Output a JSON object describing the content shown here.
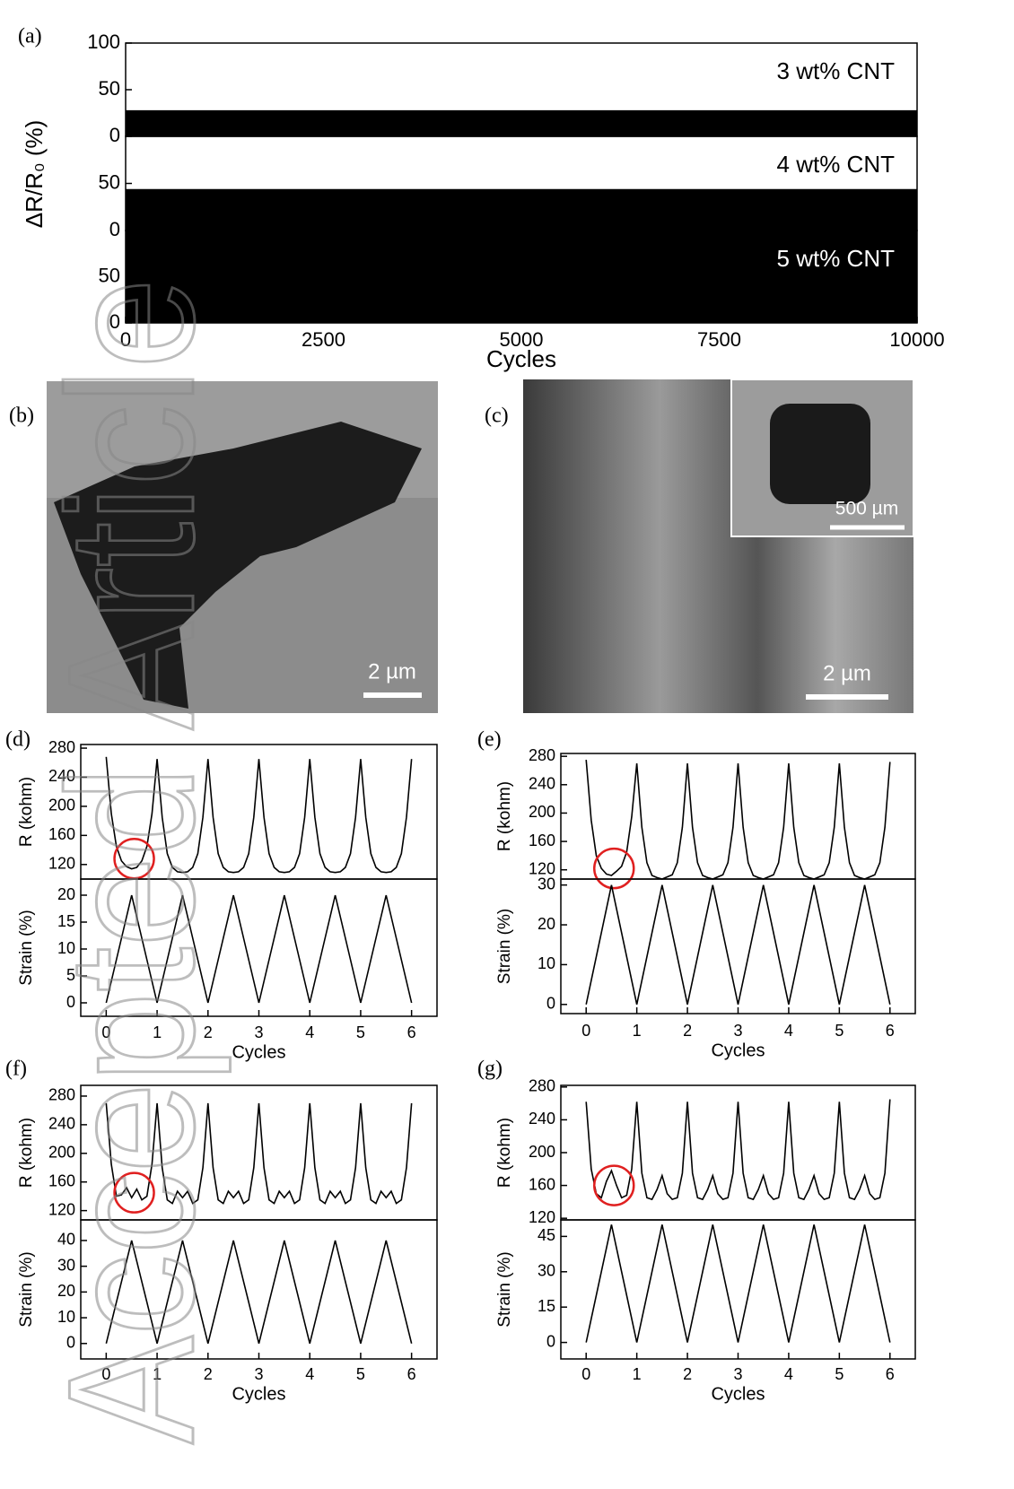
{
  "watermark": "Accepted Article",
  "images": [
    {
      "panel": "(b)",
      "scale_bar": "2 µm"
    },
    {
      "panel": "(c)",
      "scale_bar": "2 µm",
      "inset_scale_bar": "500 µm"
    }
  ],
  "chart_data": [
    {
      "type": "area",
      "panel": "(a)",
      "ylabel": "ΔR/R₀ (%)",
      "xlabel": "Cycles",
      "color": "#000000",
      "xlim": [
        0,
        10000
      ],
      "xticks": [
        0,
        2500,
        5000,
        7500,
        10000
      ],
      "subplots": [
        {
          "annotation": "3 wt% CNT",
          "annotation_color": "#000000",
          "ylim": [
            0,
            100
          ],
          "yticks": [
            0,
            50,
            100
          ],
          "x": [
            0,
            10000
          ],
          "values": [
            28,
            28
          ]
        },
        {
          "annotation": "4 wt% CNT",
          "annotation_color": "#000000",
          "ylim": [
            0,
            100
          ],
          "yticks": [
            0,
            50
          ],
          "x": [
            0,
            10000
          ],
          "values": [
            44,
            44
          ]
        },
        {
          "annotation": "5 wt% CNT",
          "annotation_color": "#ffffff",
          "ylim": [
            0,
            100
          ],
          "yticks": [
            0,
            50
          ],
          "x": [
            0,
            10000
          ],
          "values": [
            100,
            100
          ]
        }
      ]
    },
    {
      "type": "line",
      "panel": "(d)",
      "xlabel": "Cycles",
      "color": "#000000",
      "highlight_color": "#e02020",
      "xlim": [
        -0.5,
        6.5
      ],
      "xticks": [
        0,
        1,
        2,
        3,
        4,
        5,
        6
      ],
      "x": [
        0,
        0.1,
        0.2,
        0.3,
        0.4,
        0.5,
        0.6,
        0.7,
        0.8,
        0.9,
        1,
        1.1,
        1.2,
        1.3,
        1.4,
        1.5,
        1.6,
        1.7,
        1.8,
        1.9,
        2,
        2.1,
        2.2,
        2.3,
        2.4,
        2.5,
        2.6,
        2.7,
        2.8,
        2.9,
        3,
        3.1,
        3.2,
        3.3,
        3.4,
        3.5,
        3.6,
        3.7,
        3.8,
        3.9,
        4,
        4.1,
        4.2,
        4.3,
        4.4,
        4.5,
        4.6,
        4.7,
        4.8,
        4.9,
        5,
        5.1,
        5.2,
        5.3,
        5.4,
        5.5,
        5.6,
        5.7,
        5.8,
        5.9,
        6
      ],
      "subplots": [
        {
          "ylabel": "R (kohm)",
          "ylim": [
            100,
            285
          ],
          "yticks": [
            120,
            160,
            200,
            240,
            280
          ],
          "highlight": [
            0.55,
            128
          ],
          "values": [
            268,
            190,
            145,
            125,
            117,
            114,
            116,
            125,
            145,
            190,
            265,
            185,
            135,
            116,
            110,
            109,
            110,
            116,
            135,
            185,
            265,
            185,
            135,
            116,
            110,
            109,
            110,
            116,
            135,
            185,
            265,
            185,
            135,
            116,
            110,
            109,
            110,
            116,
            135,
            185,
            265,
            185,
            135,
            116,
            110,
            109,
            110,
            116,
            135,
            185,
            265,
            185,
            135,
            116,
            110,
            109,
            110,
            116,
            135,
            185,
            265
          ]
        },
        {
          "ylabel": "Strain (%)",
          "ylim": [
            -2.5,
            23
          ],
          "yticks": [
            0,
            5,
            10,
            15,
            20
          ],
          "values": [
            0,
            4,
            8,
            12,
            16,
            20,
            16,
            12,
            8,
            4,
            0,
            4,
            8,
            12,
            16,
            20,
            16,
            12,
            8,
            4,
            0,
            4,
            8,
            12,
            16,
            20,
            16,
            12,
            8,
            4,
            0,
            4,
            8,
            12,
            16,
            20,
            16,
            12,
            8,
            4,
            0,
            4,
            8,
            12,
            16,
            20,
            16,
            12,
            8,
            4,
            0,
            4,
            8,
            12,
            16,
            20,
            16,
            12,
            8,
            4,
            0
          ]
        }
      ]
    },
    {
      "type": "line",
      "panel": "(e)",
      "xlabel": "Cycles",
      "color": "#000000",
      "highlight_color": "#e02020",
      "xlim": [
        -0.5,
        6.5
      ],
      "xticks": [
        0,
        1,
        2,
        3,
        4,
        5,
        6
      ],
      "x": [
        0,
        0.1,
        0.2,
        0.3,
        0.4,
        0.5,
        0.6,
        0.7,
        0.8,
        0.9,
        1,
        1.1,
        1.2,
        1.3,
        1.4,
        1.5,
        1.6,
        1.7,
        1.8,
        1.9,
        2,
        2.1,
        2.2,
        2.3,
        2.4,
        2.5,
        2.6,
        2.7,
        2.8,
        2.9,
        3,
        3.1,
        3.2,
        3.3,
        3.4,
        3.5,
        3.6,
        3.7,
        3.8,
        3.9,
        4,
        4.1,
        4.2,
        4.3,
        4.4,
        4.5,
        4.6,
        4.7,
        4.8,
        4.9,
        5,
        5.1,
        5.2,
        5.3,
        5.4,
        5.5,
        5.6,
        5.7,
        5.8,
        5.9,
        6
      ],
      "subplots": [
        {
          "ylabel": "R (kohm)",
          "ylim": [
            107,
            284
          ],
          "yticks": [
            120,
            160,
            200,
            240,
            280
          ],
          "highlight": [
            0.55,
            122
          ],
          "values": [
            275,
            190,
            140,
            122,
            114,
            112,
            118,
            125,
            145,
            195,
            270,
            180,
            130,
            112,
            109,
            107,
            110,
            113,
            130,
            180,
            270,
            180,
            130,
            112,
            109,
            107,
            110,
            113,
            130,
            180,
            270,
            180,
            130,
            112,
            109,
            107,
            110,
            113,
            130,
            180,
            270,
            180,
            130,
            112,
            109,
            107,
            110,
            113,
            130,
            180,
            270,
            180,
            130,
            112,
            109,
            107,
            110,
            113,
            130,
            180,
            272
          ]
        },
        {
          "ylabel": "Strain (%)",
          "ylim": [
            -2.3,
            31.5
          ],
          "yticks": [
            0,
            10,
            20,
            30
          ],
          "values": [
            0,
            6,
            12,
            18,
            24,
            30,
            24,
            18,
            12,
            6,
            0,
            6,
            12,
            18,
            24,
            30,
            24,
            18,
            12,
            6,
            0,
            6,
            12,
            18,
            24,
            30,
            24,
            18,
            12,
            6,
            0,
            6,
            12,
            18,
            24,
            30,
            24,
            18,
            12,
            6,
            0,
            6,
            12,
            18,
            24,
            30,
            24,
            18,
            12,
            6,
            0,
            6,
            12,
            18,
            24,
            30,
            24,
            18,
            12,
            6,
            0
          ]
        }
      ]
    },
    {
      "type": "line",
      "panel": "(f)",
      "xlabel": "Cycles",
      "color": "#000000",
      "highlight_color": "#e02020",
      "xlim": [
        -0.5,
        6.5
      ],
      "xticks": [
        0,
        1,
        2,
        3,
        4,
        5,
        6
      ],
      "x": [
        0,
        0.1,
        0.2,
        0.3,
        0.4,
        0.5,
        0.6,
        0.7,
        0.8,
        0.9,
        1,
        1.1,
        1.2,
        1.3,
        1.4,
        1.5,
        1.6,
        1.7,
        1.8,
        1.9,
        2,
        2.1,
        2.2,
        2.3,
        2.4,
        2.5,
        2.6,
        2.7,
        2.8,
        2.9,
        3,
        3.1,
        3.2,
        3.3,
        3.4,
        3.5,
        3.6,
        3.7,
        3.8,
        3.9,
        4,
        4.1,
        4.2,
        4.3,
        4.4,
        4.5,
        4.6,
        4.7,
        4.8,
        4.9,
        5,
        5.1,
        5.2,
        5.3,
        5.4,
        5.5,
        5.6,
        5.7,
        5.8,
        5.9,
        6
      ],
      "subplots": [
        {
          "ylabel": "R (kohm)",
          "ylim": [
            107,
            295
          ],
          "yticks": [
            120,
            160,
            200,
            240,
            280
          ],
          "highlight": [
            0.55,
            145
          ],
          "values": [
            270,
            185,
            140,
            142,
            152,
            138,
            150,
            135,
            140,
            185,
            270,
            180,
            135,
            130,
            147,
            138,
            147,
            130,
            135,
            180,
            270,
            180,
            135,
            130,
            147,
            138,
            147,
            130,
            135,
            180,
            270,
            180,
            135,
            130,
            147,
            138,
            147,
            130,
            135,
            180,
            270,
            180,
            135,
            130,
            147,
            138,
            147,
            130,
            135,
            180,
            270,
            180,
            135,
            130,
            147,
            138,
            147,
            130,
            135,
            180,
            270
          ]
        },
        {
          "ylabel": "Strain (%)",
          "ylim": [
            -6,
            48
          ],
          "yticks": [
            0,
            10,
            20,
            30,
            40
          ],
          "values": [
            0,
            8,
            16,
            24,
            32,
            40,
            32,
            24,
            16,
            8,
            0,
            8,
            16,
            24,
            32,
            40,
            32,
            24,
            16,
            8,
            0,
            8,
            16,
            24,
            32,
            40,
            32,
            24,
            16,
            8,
            0,
            8,
            16,
            24,
            32,
            40,
            32,
            24,
            16,
            8,
            0,
            8,
            16,
            24,
            32,
            40,
            32,
            24,
            16,
            8,
            0,
            8,
            16,
            24,
            32,
            40,
            32,
            24,
            16,
            8,
            0
          ]
        }
      ]
    },
    {
      "type": "line",
      "panel": "(g)",
      "xlabel": "Cycles",
      "color": "#000000",
      "highlight_color": "#e02020",
      "xlim": [
        -0.5,
        6.5
      ],
      "xticks": [
        0,
        1,
        2,
        3,
        4,
        5,
        6
      ],
      "x": [
        0,
        0.1,
        0.2,
        0.3,
        0.4,
        0.5,
        0.6,
        0.7,
        0.8,
        0.9,
        1,
        1.1,
        1.2,
        1.3,
        1.4,
        1.5,
        1.6,
        1.7,
        1.8,
        1.9,
        2,
        2.1,
        2.2,
        2.3,
        2.4,
        2.5,
        2.6,
        2.7,
        2.8,
        2.9,
        3,
        3.1,
        3.2,
        3.3,
        3.4,
        3.5,
        3.6,
        3.7,
        3.8,
        3.9,
        4,
        4.1,
        4.2,
        4.3,
        4.4,
        4.5,
        4.6,
        4.7,
        4.8,
        4.9,
        5,
        5.1,
        5.2,
        5.3,
        5.4,
        5.5,
        5.6,
        5.7,
        5.8,
        5.9,
        6
      ],
      "subplots": [
        {
          "ylabel": "R (kohm)",
          "ylim": [
            118,
            282
          ],
          "yticks": [
            120,
            160,
            200,
            240,
            280
          ],
          "highlight": [
            0.55,
            160
          ],
          "values": [
            262,
            180,
            150,
            145,
            165,
            178,
            160,
            145,
            148,
            180,
            262,
            175,
            145,
            143,
            155,
            172,
            150,
            143,
            145,
            175,
            262,
            175,
            145,
            143,
            155,
            172,
            150,
            143,
            145,
            175,
            262,
            175,
            145,
            143,
            155,
            172,
            150,
            143,
            145,
            175,
            262,
            175,
            145,
            143,
            155,
            172,
            150,
            143,
            145,
            175,
            262,
            175,
            145,
            143,
            155,
            172,
            150,
            143,
            145,
            175,
            265
          ]
        },
        {
          "ylabel": "Strain (%)",
          "ylim": [
            -7,
            52
          ],
          "yticks": [
            0,
            15,
            30,
            45
          ],
          "values": [
            0,
            10,
            20,
            30,
            40,
            50,
            40,
            30,
            20,
            10,
            0,
            10,
            20,
            30,
            40,
            50,
            40,
            30,
            20,
            10,
            0,
            10,
            20,
            30,
            40,
            50,
            40,
            30,
            20,
            10,
            0,
            10,
            20,
            30,
            40,
            50,
            40,
            30,
            20,
            10,
            0,
            10,
            20,
            30,
            40,
            50,
            40,
            30,
            20,
            10,
            0,
            10,
            20,
            30,
            40,
            50,
            40,
            30,
            20,
            10,
            0
          ]
        }
      ]
    }
  ]
}
